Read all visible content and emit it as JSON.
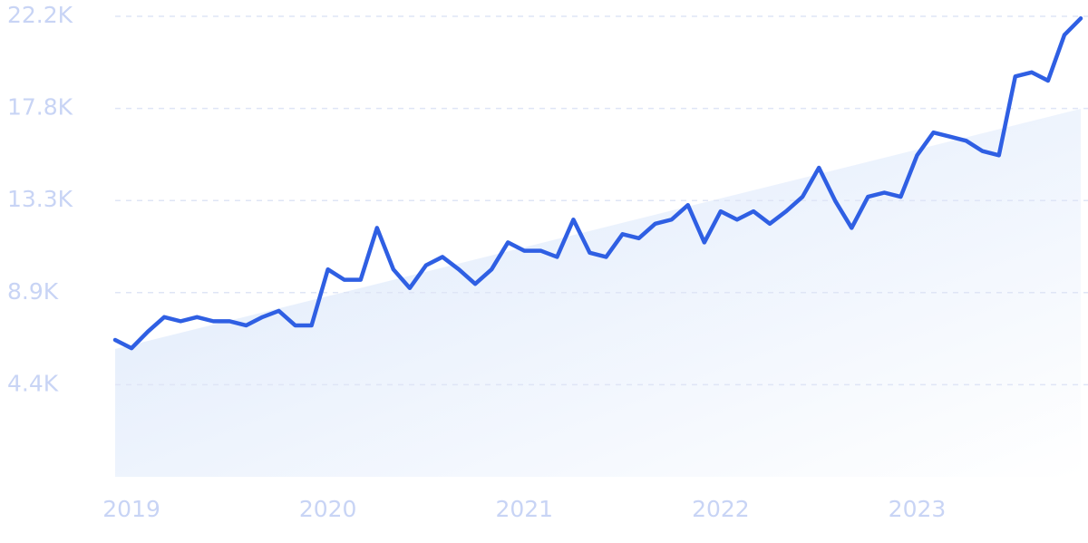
{
  "chart_data": {
    "type": "line",
    "categories": [
      null,
      "2019",
      null,
      null,
      null,
      null,
      null,
      null,
      null,
      null,
      null,
      null,
      null,
      "2020",
      null,
      null,
      null,
      null,
      null,
      null,
      null,
      null,
      null,
      null,
      null,
      "2021",
      null,
      null,
      null,
      null,
      null,
      null,
      null,
      null,
      null,
      null,
      null,
      "2022",
      null,
      null,
      null,
      null,
      null,
      null,
      null,
      null,
      null,
      null,
      null,
      "2023",
      null,
      null,
      null,
      null,
      null,
      null,
      null,
      null,
      null,
      null
    ],
    "series": [
      {
        "color": "#2f5fe3",
        "values": [
          6600,
          6200,
          7000,
          7700,
          7500,
          7700,
          7500,
          7500,
          7300,
          7700,
          8000,
          7300,
          7300,
          10000,
          9500,
          9500,
          12000,
          10000,
          9100,
          10200,
          10600,
          10000,
          9300,
          10000,
          11300,
          10900,
          10900,
          10600,
          12400,
          10800,
          10600,
          11700,
          11500,
          12200,
          12400,
          13100,
          11300,
          12800,
          12400,
          12800,
          12200,
          12800,
          13500,
          14900,
          13300,
          12000,
          13500,
          13700,
          13500,
          15500,
          16600,
          16400,
          16200,
          15700,
          15500,
          19300,
          19500,
          19100,
          21300,
          22100
        ]
      }
    ],
    "trend": [
      6160,
      17740
    ],
    "ylim": [
      0,
      22200
    ],
    "yticks": [
      {
        "value": 4440,
        "label": "4.4K"
      },
      {
        "value": 8880,
        "label": "8.9K"
      },
      {
        "value": 13320,
        "label": "13.3K"
      },
      {
        "value": 17760,
        "label": "17.8K"
      },
      {
        "value": 22200,
        "label": "22.2K"
      }
    ],
    "grid": true
  }
}
